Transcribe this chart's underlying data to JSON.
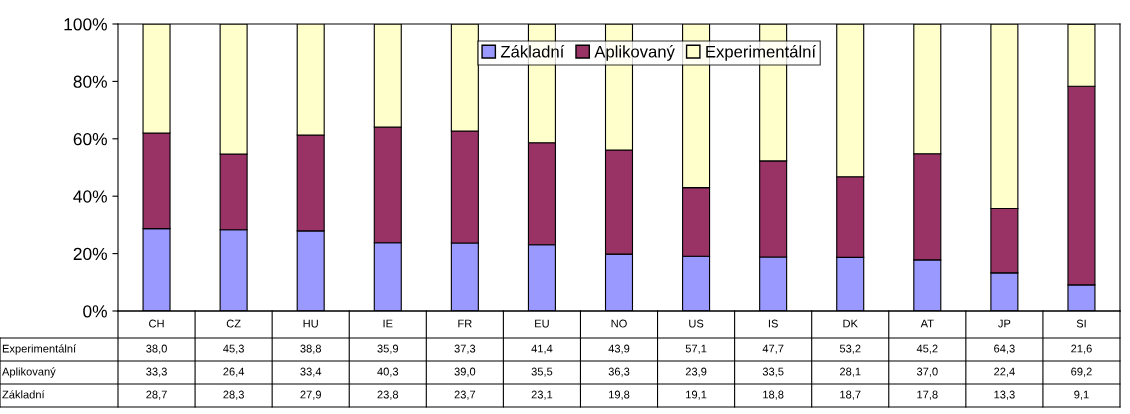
{
  "chart_data": {
    "type": "bar",
    "stacked": true,
    "categories": [
      "CH",
      "CZ",
      "HU",
      "IE",
      "FR",
      "EU",
      "NO",
      "US",
      "IS",
      "DK",
      "AT",
      "JP",
      "SI"
    ],
    "series": [
      {
        "name": "Základní",
        "color": "#9999ff",
        "values": [
          28.7,
          28.3,
          27.9,
          23.8,
          23.7,
          23.1,
          19.8,
          19.1,
          18.8,
          18.7,
          17.8,
          13.3,
          9.1
        ],
        "value_labels": [
          "28,7",
          "28,3",
          "27,9",
          "23,8",
          "23,7",
          "23,1",
          "19,8",
          "19,1",
          "18,8",
          "18,7",
          "17,8",
          "13,3",
          "9,1"
        ]
      },
      {
        "name": "Aplikovaný",
        "color": "#993366",
        "values": [
          33.3,
          26.4,
          33.4,
          40.3,
          39.0,
          35.5,
          36.3,
          23.9,
          33.5,
          28.1,
          37.0,
          22.4,
          69.2
        ],
        "value_labels": [
          "33,3",
          "26,4",
          "33,4",
          "40,3",
          "39,0",
          "35,5",
          "36,3",
          "23,9",
          "33,5",
          "28,1",
          "37,0",
          "22,4",
          "69,2"
        ]
      },
      {
        "name": "Experimentální",
        "color": "#ffffcc",
        "values": [
          38.0,
          45.3,
          38.8,
          35.9,
          37.3,
          41.4,
          43.9,
          57.1,
          47.7,
          53.2,
          45.2,
          64.3,
          21.6
        ],
        "value_labels": [
          "38,0",
          "45,3",
          "38,8",
          "35,9",
          "37,3",
          "41,4",
          "43,9",
          "57,1",
          "47,7",
          "53,2",
          "45,2",
          "64,3",
          "21,6"
        ]
      }
    ],
    "ylim": [
      0,
      100
    ],
    "yticks": [
      {
        "value": 0,
        "label": "0%"
      },
      {
        "value": 20,
        "label": "20%"
      },
      {
        "value": 40,
        "label": "40%"
      },
      {
        "value": 60,
        "label": "60%"
      },
      {
        "value": 80,
        "label": "80%"
      },
      {
        "value": 100,
        "label": "100%"
      }
    ],
    "grid": false,
    "legend": "top"
  }
}
